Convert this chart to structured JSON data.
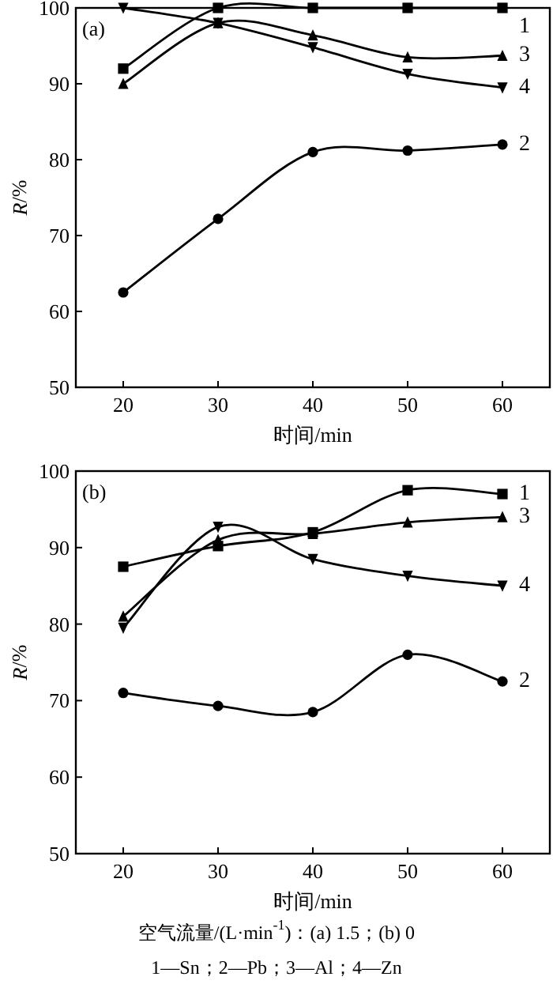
{
  "chart_data": [
    {
      "type": "line",
      "title": "(a)",
      "xlabel": "时间/min",
      "ylabel": "*R*/%",
      "x": [
        20,
        30,
        40,
        50,
        60
      ],
      "xlim": [
        15,
        65
      ],
      "xticks": [
        20,
        30,
        40,
        50,
        60
      ],
      "ylim": [
        50,
        100
      ],
      "yticks": [
        50,
        60,
        70,
        80,
        90,
        100
      ],
      "series": [
        {
          "name": "1",
          "color": "#000000",
          "marker": "square",
          "values": [
            92,
            100,
            100,
            100,
            100
          ]
        },
        {
          "name": "2",
          "color": "#000000",
          "marker": "circle",
          "values": [
            62.5,
            72.2,
            81,
            81.2,
            82
          ]
        },
        {
          "name": "3",
          "color": "#000000",
          "marker": "triangle",
          "values": [
            90,
            98,
            96.4,
            93.5,
            93.7
          ]
        },
        {
          "name": "4",
          "color": "#000000",
          "marker": "triangle-down",
          "values": [
            100,
            98,
            94.8,
            91.3,
            89.5
          ]
        }
      ]
    },
    {
      "type": "line",
      "title": "(b)",
      "xlabel": "时间/min",
      "ylabel": "*R*/%",
      "x": [
        20,
        30,
        40,
        50,
        60
      ],
      "xlim": [
        15,
        65
      ],
      "xticks": [
        20,
        30,
        40,
        50,
        60
      ],
      "ylim": [
        50,
        100
      ],
      "yticks": [
        50,
        60,
        70,
        80,
        90,
        100
      ],
      "series": [
        {
          "name": "1",
          "color": "#000000",
          "marker": "square",
          "values": [
            87.5,
            90.2,
            92,
            97.5,
            97
          ]
        },
        {
          "name": "2",
          "color": "#000000",
          "marker": "circle",
          "values": [
            71,
            69.3,
            68.5,
            76,
            72.5
          ]
        },
        {
          "name": "3",
          "color": "#000000",
          "marker": "triangle",
          "values": [
            81,
            91,
            91.8,
            93.3,
            94
          ]
        },
        {
          "name": "4",
          "color": "#000000",
          "marker": "triangle-down",
          "values": [
            79.5,
            92.7,
            88.5,
            86.3,
            85
          ]
        }
      ],
      "annotations": [
        "空气流量/(L·min$^{-1}$)：(a) 1.5；(b) 0",
        "1—Sn；2—Pb；3—Al；4—Zn"
      ]
    }
  ]
}
